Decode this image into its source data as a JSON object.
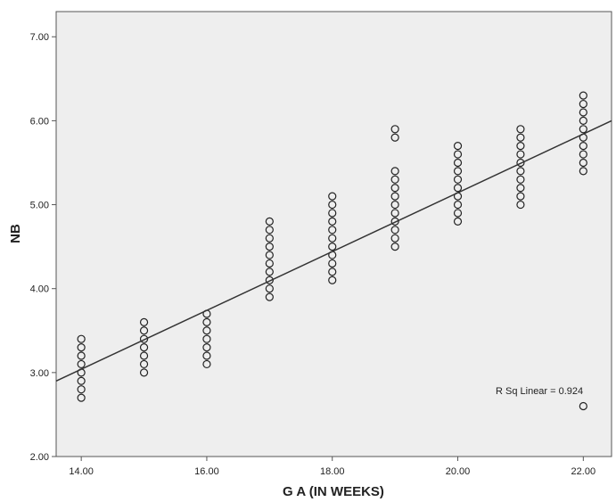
{
  "chart_data": {
    "type": "scatter",
    "xlabel": "G A (IN WEEKS)",
    "ylabel": "NB",
    "xlim": [
      13.6,
      22.45
    ],
    "ylim": [
      2.0,
      7.3
    ],
    "x_ticks": [
      "14.00",
      "16.00",
      "18.00",
      "20.00",
      "22.00"
    ],
    "y_ticks": [
      "2.00",
      "3.00",
      "4.00",
      "5.00",
      "6.00",
      "7.00"
    ],
    "grid": false,
    "background_color": "#eeeeee",
    "marker": "open-circle",
    "fit_line": {
      "type": "linear",
      "x": [
        13.6,
        22.45
      ],
      "y": [
        2.9,
        6.0
      ]
    },
    "annotation": "R Sq Linear = 0.924",
    "series": [
      {
        "points": [
          [
            14,
            2.7
          ],
          [
            14,
            2.8
          ],
          [
            14,
            2.9
          ],
          [
            14,
            3.0
          ],
          [
            14,
            3.1
          ],
          [
            14,
            3.2
          ],
          [
            14,
            3.3
          ],
          [
            14,
            3.4
          ],
          [
            15,
            3.0
          ],
          [
            15,
            3.1
          ],
          [
            15,
            3.2
          ],
          [
            15,
            3.3
          ],
          [
            15,
            3.4
          ],
          [
            15,
            3.5
          ],
          [
            15,
            3.6
          ],
          [
            16,
            3.1
          ],
          [
            16,
            3.2
          ],
          [
            16,
            3.3
          ],
          [
            16,
            3.4
          ],
          [
            16,
            3.5
          ],
          [
            16,
            3.6
          ],
          [
            16,
            3.7
          ],
          [
            17,
            3.9
          ],
          [
            17,
            4.0
          ],
          [
            17,
            4.1
          ],
          [
            17,
            4.2
          ],
          [
            17,
            4.3
          ],
          [
            17,
            4.4
          ],
          [
            17,
            4.5
          ],
          [
            17,
            4.6
          ],
          [
            17,
            4.7
          ],
          [
            17,
            4.8
          ],
          [
            18,
            4.1
          ],
          [
            18,
            4.2
          ],
          [
            18,
            4.3
          ],
          [
            18,
            4.4
          ],
          [
            18,
            4.5
          ],
          [
            18,
            4.6
          ],
          [
            18,
            4.7
          ],
          [
            18,
            4.8
          ],
          [
            18,
            4.9
          ],
          [
            18,
            5.0
          ],
          [
            18,
            5.1
          ],
          [
            19,
            4.5
          ],
          [
            19,
            4.6
          ],
          [
            19,
            4.7
          ],
          [
            19,
            4.8
          ],
          [
            19,
            4.9
          ],
          [
            19,
            5.0
          ],
          [
            19,
            5.1
          ],
          [
            19,
            5.2
          ],
          [
            19,
            5.3
          ],
          [
            19,
            5.4
          ],
          [
            19,
            5.8
          ],
          [
            19,
            5.9
          ],
          [
            20,
            4.8
          ],
          [
            20,
            4.9
          ],
          [
            20,
            5.0
          ],
          [
            20,
            5.1
          ],
          [
            20,
            5.2
          ],
          [
            20,
            5.3
          ],
          [
            20,
            5.4
          ],
          [
            20,
            5.5
          ],
          [
            20,
            5.6
          ],
          [
            20,
            5.7
          ],
          [
            21,
            5.0
          ],
          [
            21,
            5.1
          ],
          [
            21,
            5.2
          ],
          [
            21,
            5.3
          ],
          [
            21,
            5.4
          ],
          [
            21,
            5.5
          ],
          [
            21,
            5.6
          ],
          [
            21,
            5.7
          ],
          [
            21,
            5.8
          ],
          [
            21,
            5.9
          ],
          [
            22,
            2.6
          ],
          [
            22,
            5.4
          ],
          [
            22,
            5.5
          ],
          [
            22,
            5.6
          ],
          [
            22,
            5.7
          ],
          [
            22,
            5.8
          ],
          [
            22,
            5.9
          ],
          [
            22,
            6.0
          ],
          [
            22,
            6.1
          ],
          [
            22,
            6.2
          ],
          [
            22,
            6.3
          ]
        ]
      }
    ]
  }
}
